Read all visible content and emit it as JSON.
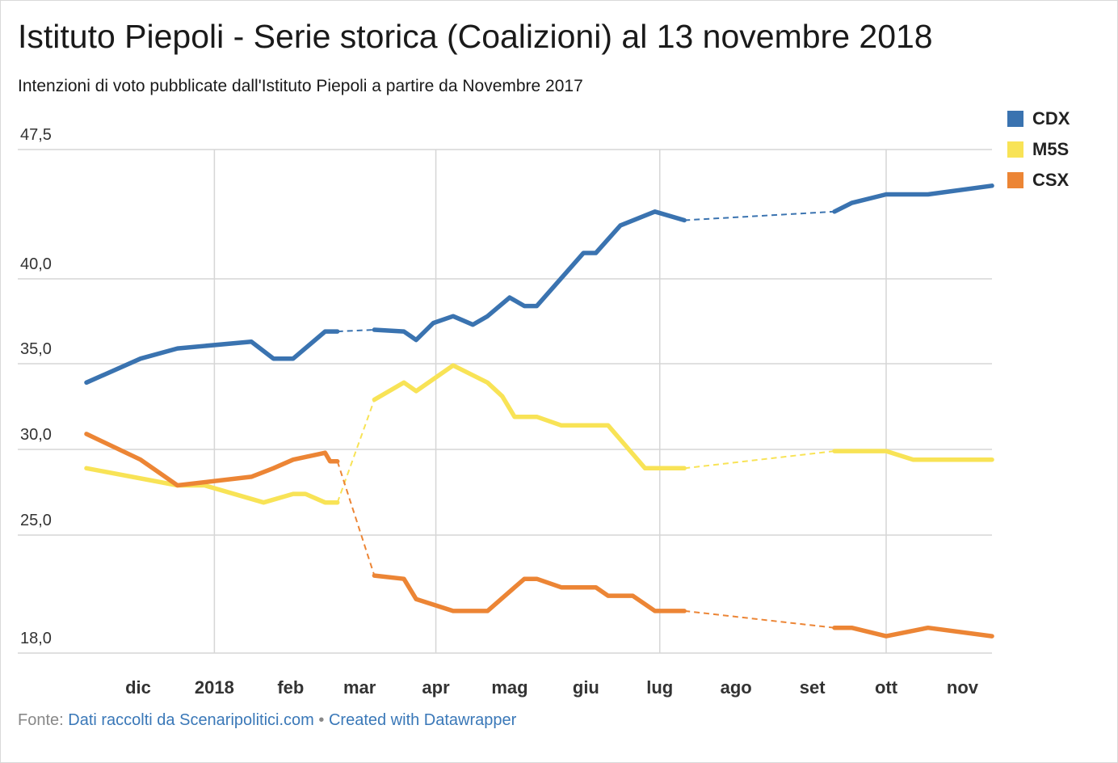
{
  "title": "Istituto Piepoli - Serie storica (Coalizioni) al 13 novembre 2018",
  "subtitle": "Intenzioni di voto pubblicate dall'Istituto Piepoli a partire da Novembre 2017",
  "footer": {
    "prefix": "Fonte:",
    "source_link": "Dati raccolti da Scenaripolitici.com",
    "separator": "•",
    "credit_link": "Created with Datawrapper"
  },
  "legend": [
    {
      "label": "CDX",
      "color": "#3a73b0"
    },
    {
      "label": "M5S",
      "color": "#f8e356"
    },
    {
      "label": "CSX",
      "color": "#ec8535"
    }
  ],
  "chart_data": {
    "type": "line",
    "title": "Istituto Piepoli - Serie storica (Coalizioni) al 13 novembre 2018",
    "xlabel": "",
    "ylabel": "",
    "x_tick_labels": [
      "dic",
      "2018",
      "feb",
      "mar",
      "apr",
      "mag",
      "giu",
      "lug",
      "ago",
      "set",
      "ott",
      "nov"
    ],
    "x_tick_dates": [
      "2017-12-01",
      "2018-01-01",
      "2018-02-01",
      "2018-03-01",
      "2018-04-01",
      "2018-05-01",
      "2018-06-01",
      "2018-07-01",
      "2018-08-01",
      "2018-09-01",
      "2018-10-01",
      "2018-11-01"
    ],
    "y_ticks": [
      18.0,
      25.0,
      30.0,
      35.0,
      40.0,
      47.5
    ],
    "y_tick_labels": [
      "18,0",
      "25,0",
      "30,0",
      "35,0",
      "40,0",
      "47,5"
    ],
    "ylim": [
      18,
      47.5
    ],
    "xlim": [
      "2017-11-10",
      "2018-11-13"
    ],
    "grid": true,
    "legend_position": "top-right",
    "gaps": [
      [
        "2018-02-20",
        "2018-03-07"
      ],
      [
        "2018-07-11",
        "2018-09-10"
      ]
    ],
    "series": [
      {
        "name": "CDX",
        "color": "#3a73b0",
        "points": [
          [
            "2017-11-10",
            33.9
          ],
          [
            "2017-12-02",
            35.3
          ],
          [
            "2017-12-17",
            35.9
          ],
          [
            "2018-01-16",
            36.3
          ],
          [
            "2018-01-25",
            35.3
          ],
          [
            "2018-02-02",
            35.3
          ],
          [
            "2018-02-15",
            36.9
          ],
          [
            "2018-02-20",
            36.9
          ],
          [
            "2018-03-07",
            37.0
          ],
          [
            "2018-03-19",
            36.9
          ],
          [
            "2018-03-24",
            36.4
          ],
          [
            "2018-03-31",
            37.4
          ],
          [
            "2018-04-08",
            37.8
          ],
          [
            "2018-04-16",
            37.3
          ],
          [
            "2018-04-22",
            37.8
          ],
          [
            "2018-05-01",
            38.9
          ],
          [
            "2018-05-07",
            38.4
          ],
          [
            "2018-05-12",
            38.4
          ],
          [
            "2018-05-31",
            41.5
          ],
          [
            "2018-06-05",
            41.5
          ],
          [
            "2018-06-15",
            43.1
          ],
          [
            "2018-06-29",
            43.9
          ],
          [
            "2018-07-11",
            43.4
          ],
          [
            "2018-09-10",
            43.9
          ],
          [
            "2018-09-17",
            44.4
          ],
          [
            "2018-10-01",
            44.9
          ],
          [
            "2018-10-18",
            44.9
          ],
          [
            "2018-11-13",
            45.4
          ]
        ]
      },
      {
        "name": "M5S",
        "color": "#f8e356",
        "points": [
          [
            "2017-11-10",
            28.9
          ],
          [
            "2017-12-17",
            27.9
          ],
          [
            "2017-12-28",
            27.9
          ],
          [
            "2018-01-21",
            26.9
          ],
          [
            "2018-02-02",
            27.4
          ],
          [
            "2018-02-07",
            27.4
          ],
          [
            "2018-02-15",
            26.9
          ],
          [
            "2018-02-20",
            26.9
          ],
          [
            "2018-03-07",
            32.9
          ],
          [
            "2018-03-19",
            33.9
          ],
          [
            "2018-03-24",
            33.4
          ],
          [
            "2018-04-08",
            34.9
          ],
          [
            "2018-04-22",
            33.9
          ],
          [
            "2018-04-28",
            33.1
          ],
          [
            "2018-05-03",
            31.9
          ],
          [
            "2018-05-12",
            31.9
          ],
          [
            "2018-05-22",
            31.4
          ],
          [
            "2018-06-10",
            31.4
          ],
          [
            "2018-06-25",
            28.9
          ],
          [
            "2018-07-11",
            28.9
          ],
          [
            "2018-09-10",
            29.9
          ],
          [
            "2018-10-01",
            29.9
          ],
          [
            "2018-10-12",
            29.4
          ],
          [
            "2018-11-13",
            29.4
          ]
        ]
      },
      {
        "name": "CSX",
        "color": "#ec8535",
        "points": [
          [
            "2017-11-10",
            30.9
          ],
          [
            "2017-12-02",
            29.4
          ],
          [
            "2017-12-17",
            27.9
          ],
          [
            "2018-01-16",
            28.4
          ],
          [
            "2018-01-25",
            28.9
          ],
          [
            "2018-02-02",
            29.4
          ],
          [
            "2018-02-15",
            29.8
          ],
          [
            "2018-02-17",
            29.3
          ],
          [
            "2018-02-20",
            29.3
          ],
          [
            "2018-03-07",
            22.6
          ],
          [
            "2018-03-19",
            22.4
          ],
          [
            "2018-03-24",
            21.2
          ],
          [
            "2018-04-08",
            20.5
          ],
          [
            "2018-04-16",
            20.5
          ],
          [
            "2018-04-22",
            20.5
          ],
          [
            "2018-05-03",
            21.9
          ],
          [
            "2018-05-07",
            22.4
          ],
          [
            "2018-05-12",
            22.4
          ],
          [
            "2018-05-22",
            21.9
          ],
          [
            "2018-06-05",
            21.9
          ],
          [
            "2018-06-10",
            21.4
          ],
          [
            "2018-06-20",
            21.4
          ],
          [
            "2018-06-29",
            20.5
          ],
          [
            "2018-07-11",
            20.5
          ],
          [
            "2018-09-10",
            19.5
          ],
          [
            "2018-09-17",
            19.5
          ],
          [
            "2018-10-01",
            19.0
          ],
          [
            "2018-10-18",
            19.5
          ],
          [
            "2018-11-13",
            19.0
          ]
        ]
      }
    ]
  }
}
